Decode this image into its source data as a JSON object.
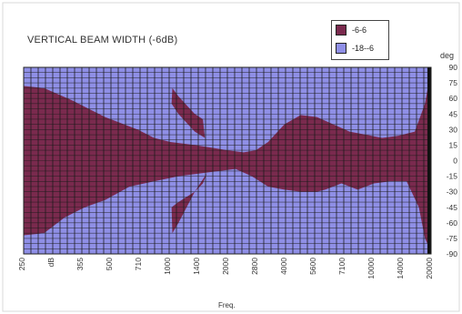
{
  "chart_data": {
    "type": "heatmap",
    "title": "VERTICAL BEAM WIDTH (-6dB)",
    "xlabel": "Freq.",
    "ylabel": "deg",
    "x_ticks": [
      "250",
      "dB",
      "355",
      "500",
      "710",
      "1000",
      "1400",
      "2000",
      "2800",
      "4000",
      "5600",
      "7100",
      "10000",
      "14000",
      "20000"
    ],
    "y_ticks": [
      90,
      75,
      60,
      45,
      30,
      15,
      0,
      -15,
      -30,
      -45,
      -60,
      -75,
      -90
    ],
    "ylim": [
      -90,
      90
    ],
    "grid": true,
    "legend_position": "top-right",
    "colors": {
      "inner": "#7a2a4e",
      "outer": "#8f8fe6",
      "grid": "#1a1a1a"
    },
    "series": [
      {
        "name": "-6-6",
        "color": "#7a2a4e"
      },
      {
        "name": "-18--6",
        "color": "#8f8fe6"
      }
    ],
    "boundary_upper": [
      [
        0,
        72
      ],
      [
        0.05,
        70
      ],
      [
        0.12,
        58
      ],
      [
        0.2,
        42
      ],
      [
        0.28,
        30
      ],
      [
        0.32,
        22
      ],
      [
        0.36,
        18
      ],
      [
        0.42,
        15
      ],
      [
        0.47,
        12
      ],
      [
        0.5,
        10
      ],
      [
        0.54,
        8
      ],
      [
        0.57,
        10
      ],
      [
        0.6,
        18
      ],
      [
        0.64,
        35
      ],
      [
        0.68,
        44
      ],
      [
        0.72,
        42
      ],
      [
        0.76,
        35
      ],
      [
        0.8,
        28
      ],
      [
        0.84,
        25
      ],
      [
        0.88,
        22
      ],
      [
        0.92,
        24
      ],
      [
        0.96,
        28
      ],
      [
        0.985,
        55
      ],
      [
        1,
        88
      ]
    ],
    "boundary_lower": [
      [
        0,
        -72
      ],
      [
        0.05,
        -70
      ],
      [
        0.1,
        -55
      ],
      [
        0.15,
        -45
      ],
      [
        0.2,
        -38
      ],
      [
        0.26,
        -25
      ],
      [
        0.32,
        -20
      ],
      [
        0.38,
        -15
      ],
      [
        0.44,
        -12
      ],
      [
        0.48,
        -10
      ],
      [
        0.52,
        -8
      ],
      [
        0.56,
        -15
      ],
      [
        0.6,
        -25
      ],
      [
        0.64,
        -28
      ],
      [
        0.68,
        -30
      ],
      [
        0.72,
        -30
      ],
      [
        0.74,
        -28
      ],
      [
        0.78,
        -22
      ],
      [
        0.82,
        -28
      ],
      [
        0.86,
        -22
      ],
      [
        0.9,
        -20
      ],
      [
        0.94,
        -20
      ],
      [
        0.97,
        -45
      ],
      [
        0.985,
        -75
      ],
      [
        1,
        -88
      ]
    ],
    "island_upper": [
      [
        0.365,
        70
      ],
      [
        0.38,
        62
      ],
      [
        0.42,
        45
      ],
      [
        0.44,
        40
      ],
      [
        0.445,
        22
      ],
      [
        0.42,
        28
      ],
      [
        0.38,
        45
      ],
      [
        0.363,
        55
      ]
    ],
    "island_lower": [
      [
        0.363,
        -45
      ],
      [
        0.38,
        -40
      ],
      [
        0.42,
        -30
      ],
      [
        0.44,
        -22
      ],
      [
        0.45,
        -12
      ],
      [
        0.42,
        -30
      ],
      [
        0.38,
        -60
      ],
      [
        0.365,
        -70
      ]
    ]
  }
}
